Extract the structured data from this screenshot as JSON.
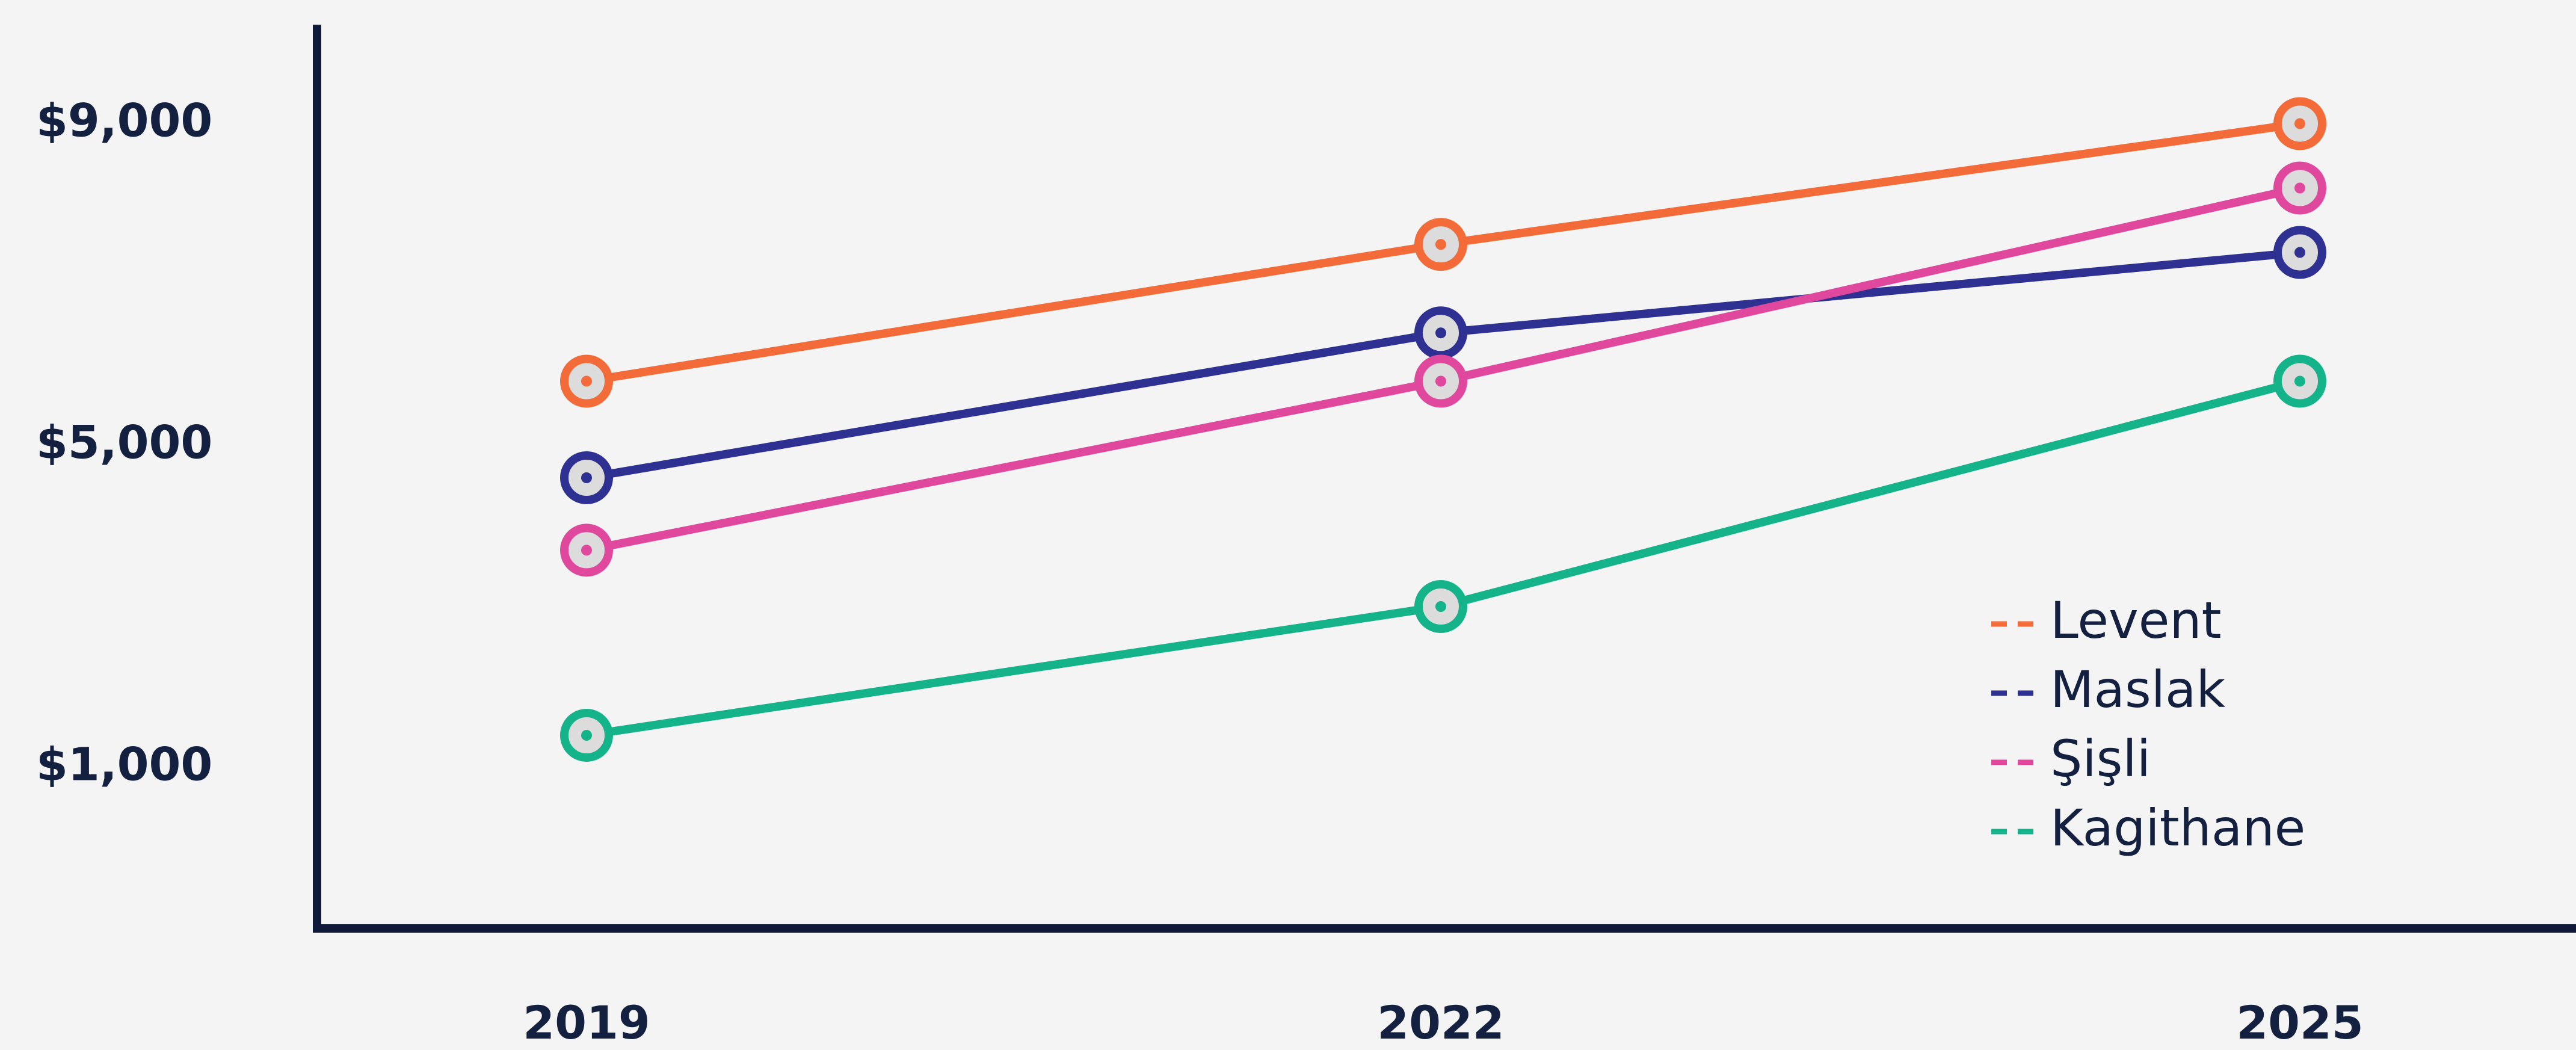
{
  "chart_data": {
    "type": "line",
    "categories": [
      "2019",
      "2022",
      "2025"
    ],
    "series": [
      {
        "name": "Levent",
        "color": "#f26b38",
        "values": [
          5800,
          7500,
          9000
        ]
      },
      {
        "name": "Maslak",
        "color": "#2e3192",
        "values": [
          4600,
          6400,
          7400
        ]
      },
      {
        "name": "Şişli",
        "color": "#e0489e",
        "values": [
          3700,
          5800,
          8200
        ]
      },
      {
        "name": "Kagithane",
        "color": "#14b38a",
        "values": [
          1400,
          3000,
          5800
        ]
      }
    ],
    "ylim": [
      -1000,
      10200
    ],
    "yticks": [
      {
        "value": 1000,
        "label": "$1,000"
      },
      {
        "value": 5000,
        "label": "$5,000"
      },
      {
        "value": 9000,
        "label": "$9,000"
      }
    ],
    "grid": false,
    "legend": "lower right"
  }
}
